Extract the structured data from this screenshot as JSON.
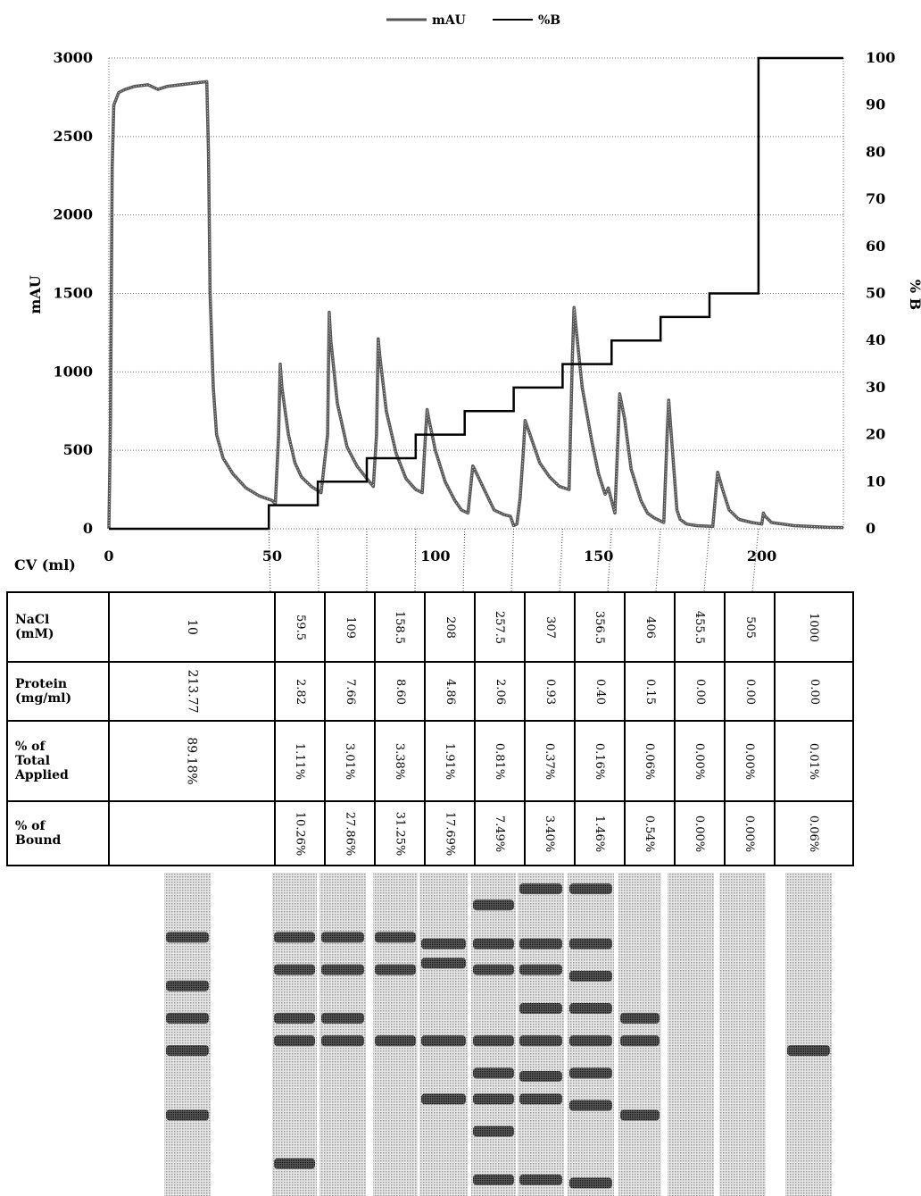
{
  "chart_data": {
    "type": "line",
    "legend": {
      "position": "top-center",
      "entries": [
        "mAU",
        "%B"
      ]
    },
    "xlabel": "CV (ml)",
    "ylabel": "mAU",
    "y2label": "% B",
    "xlim": [
      0,
      225
    ],
    "ylim": [
      0,
      3000
    ],
    "y2lim": [
      0,
      100
    ],
    "xticks": [
      "0",
      "50",
      "100",
      "150",
      "200"
    ],
    "yticks": [
      "0",
      "500",
      "1000",
      "1500",
      "2000",
      "2500",
      "3000"
    ],
    "y2ticks": [
      "0",
      "10",
      "20",
      "30",
      "40",
      "50",
      "60",
      "70",
      "80",
      "90",
      "100"
    ],
    "grid": true,
    "series": [
      {
        "name": "mAU",
        "axis": "left",
        "points": [
          [
            0,
            0
          ],
          [
            0.5,
            700
          ],
          [
            1,
            2300
          ],
          [
            1.5,
            2700
          ],
          [
            3,
            2780
          ],
          [
            5,
            2800
          ],
          [
            8,
            2820
          ],
          [
            12,
            2830
          ],
          [
            15,
            2800
          ],
          [
            18,
            2820
          ],
          [
            22,
            2830
          ],
          [
            26,
            2840
          ],
          [
            30,
            2850
          ],
          [
            30.5,
            2400
          ],
          [
            31,
            1500
          ],
          [
            32,
            900
          ],
          [
            33,
            600
          ],
          [
            35,
            450
          ],
          [
            38,
            350
          ],
          [
            42,
            260
          ],
          [
            46,
            210
          ],
          [
            50,
            180
          ],
          [
            51,
            160
          ],
          [
            52,
            600
          ],
          [
            52.5,
            1050
          ],
          [
            53,
            900
          ],
          [
            55,
            600
          ],
          [
            57,
            420
          ],
          [
            59,
            330
          ],
          [
            62,
            270
          ],
          [
            65,
            230
          ],
          [
            67,
            600
          ],
          [
            67.5,
            1380
          ],
          [
            68,
            1200
          ],
          [
            70,
            800
          ],
          [
            73,
            520
          ],
          [
            76,
            400
          ],
          [
            79,
            320
          ],
          [
            81,
            270
          ],
          [
            82,
            600
          ],
          [
            82.5,
            1210
          ],
          [
            83,
            1100
          ],
          [
            85,
            750
          ],
          [
            88,
            480
          ],
          [
            91,
            320
          ],
          [
            94,
            250
          ],
          [
            96,
            230
          ],
          [
            97,
            600
          ],
          [
            97.5,
            760
          ],
          [
            98,
            700
          ],
          [
            100,
            500
          ],
          [
            103,
            300
          ],
          [
            106,
            180
          ],
          [
            108,
            120
          ],
          [
            110,
            100
          ],
          [
            111,
            300
          ],
          [
            111.5,
            400
          ],
          [
            112,
            380
          ],
          [
            115,
            250
          ],
          [
            118,
            120
          ],
          [
            121,
            90
          ],
          [
            123,
            80
          ],
          [
            124,
            20
          ],
          [
            125,
            30
          ],
          [
            126,
            200
          ],
          [
            127,
            500
          ],
          [
            127.5,
            690
          ],
          [
            129,
            600
          ],
          [
            132,
            420
          ],
          [
            135,
            330
          ],
          [
            138,
            270
          ],
          [
            141,
            250
          ],
          [
            142,
            1100
          ],
          [
            142.5,
            1410
          ],
          [
            143,
            1300
          ],
          [
            145,
            900
          ],
          [
            148,
            550
          ],
          [
            150,
            350
          ],
          [
            152,
            220
          ],
          [
            153,
            260
          ],
          [
            154,
            180
          ],
          [
            155,
            100
          ],
          [
            156,
            600
          ],
          [
            156.5,
            860
          ],
          [
            158,
            700
          ],
          [
            160,
            380
          ],
          [
            163,
            180
          ],
          [
            165,
            100
          ],
          [
            167,
            70
          ],
          [
            170,
            40
          ],
          [
            171,
            600
          ],
          [
            171.5,
            820
          ],
          [
            173,
            400
          ],
          [
            174,
            120
          ],
          [
            175,
            60
          ],
          [
            177,
            30
          ],
          [
            180,
            20
          ],
          [
            185,
            15
          ],
          [
            186,
            250
          ],
          [
            186.5,
            360
          ],
          [
            188,
            250
          ],
          [
            190,
            120
          ],
          [
            193,
            60
          ],
          [
            197,
            40
          ],
          [
            200,
            30
          ],
          [
            200.5,
            100
          ],
          [
            201,
            80
          ],
          [
            203,
            40
          ],
          [
            210,
            20
          ],
          [
            220,
            10
          ],
          [
            225,
            8
          ]
        ]
      },
      {
        "name": "%B",
        "axis": "right",
        "steps": [
          [
            0,
            0
          ],
          [
            49,
            0
          ],
          [
            49,
            5
          ],
          [
            64,
            5
          ],
          [
            64,
            10
          ],
          [
            79,
            10
          ],
          [
            79,
            15
          ],
          [
            94,
            15
          ],
          [
            94,
            20
          ],
          [
            109,
            20
          ],
          [
            109,
            25
          ],
          [
            124,
            25
          ],
          [
            124,
            30
          ],
          [
            139,
            30
          ],
          [
            139,
            35
          ],
          [
            154,
            35
          ],
          [
            154,
            40
          ],
          [
            169,
            40
          ],
          [
            169,
            45
          ],
          [
            184,
            45
          ],
          [
            184,
            50
          ],
          [
            199,
            50
          ],
          [
            199,
            100
          ],
          [
            225,
            100
          ]
        ]
      }
    ]
  },
  "table": {
    "rows": [
      {
        "label_lines": [
          "NaCl",
          "(mM)"
        ],
        "values": [
          "10",
          "59.5",
          "109",
          "158.5",
          "208",
          "257.5",
          "307",
          "356.5",
          "406",
          "455.5",
          "505",
          "1000"
        ]
      },
      {
        "label_lines": [
          "Protein",
          "(mg/ml)"
        ],
        "values": [
          "213.77",
          "2.82",
          "7.66",
          "8.60",
          "4.86",
          "2.06",
          "0.93",
          "0.40",
          "0.15",
          "0.00",
          "0.00",
          "0.00"
        ]
      },
      {
        "label_lines": [
          "% of",
          "Total",
          "Applied"
        ],
        "values": [
          "89.18%",
          "1.11%",
          "3.01%",
          "3.38%",
          "1.91%",
          "0.81%",
          "0.37%",
          "0.16%",
          "0.06%",
          "0.00%",
          "0.00%",
          "0.01%"
        ]
      },
      {
        "label_lines": [
          "% of",
          "Bound"
        ],
        "values": [
          "",
          "10.26%",
          "27.86%",
          "31.25%",
          "17.69%",
          "7.49%",
          "3.40%",
          "1.46%",
          "0.54%",
          "0.00%",
          "0.00%",
          "0.06%"
        ]
      }
    ]
  },
  "gel": {
    "lanes": [
      {
        "bands": [
          0.2,
          0.35,
          0.45,
          0.55,
          0.75
        ]
      },
      {
        "bands": [
          0.2,
          0.3,
          0.45,
          0.52,
          0.9
        ]
      },
      {
        "bands": [
          0.2,
          0.3,
          0.45,
          0.52
        ]
      },
      {
        "bands": [
          0.2,
          0.3,
          0.52
        ]
      },
      {
        "bands": [
          0.22,
          0.28,
          0.52,
          0.7
        ]
      },
      {
        "bands": [
          0.1,
          0.22,
          0.3,
          0.52,
          0.62,
          0.7,
          0.8,
          0.95
        ]
      },
      {
        "bands": [
          0.05,
          0.22,
          0.3,
          0.42,
          0.52,
          0.63,
          0.7,
          0.95
        ]
      },
      {
        "bands": [
          0.05,
          0.22,
          0.32,
          0.42,
          0.52,
          0.62,
          0.72,
          0.96
        ]
      },
      {
        "bands": [
          0.45,
          0.52,
          0.75
        ]
      },
      {
        "bands": []
      },
      {
        "bands": []
      },
      {
        "bands": [
          0.55
        ]
      }
    ]
  }
}
